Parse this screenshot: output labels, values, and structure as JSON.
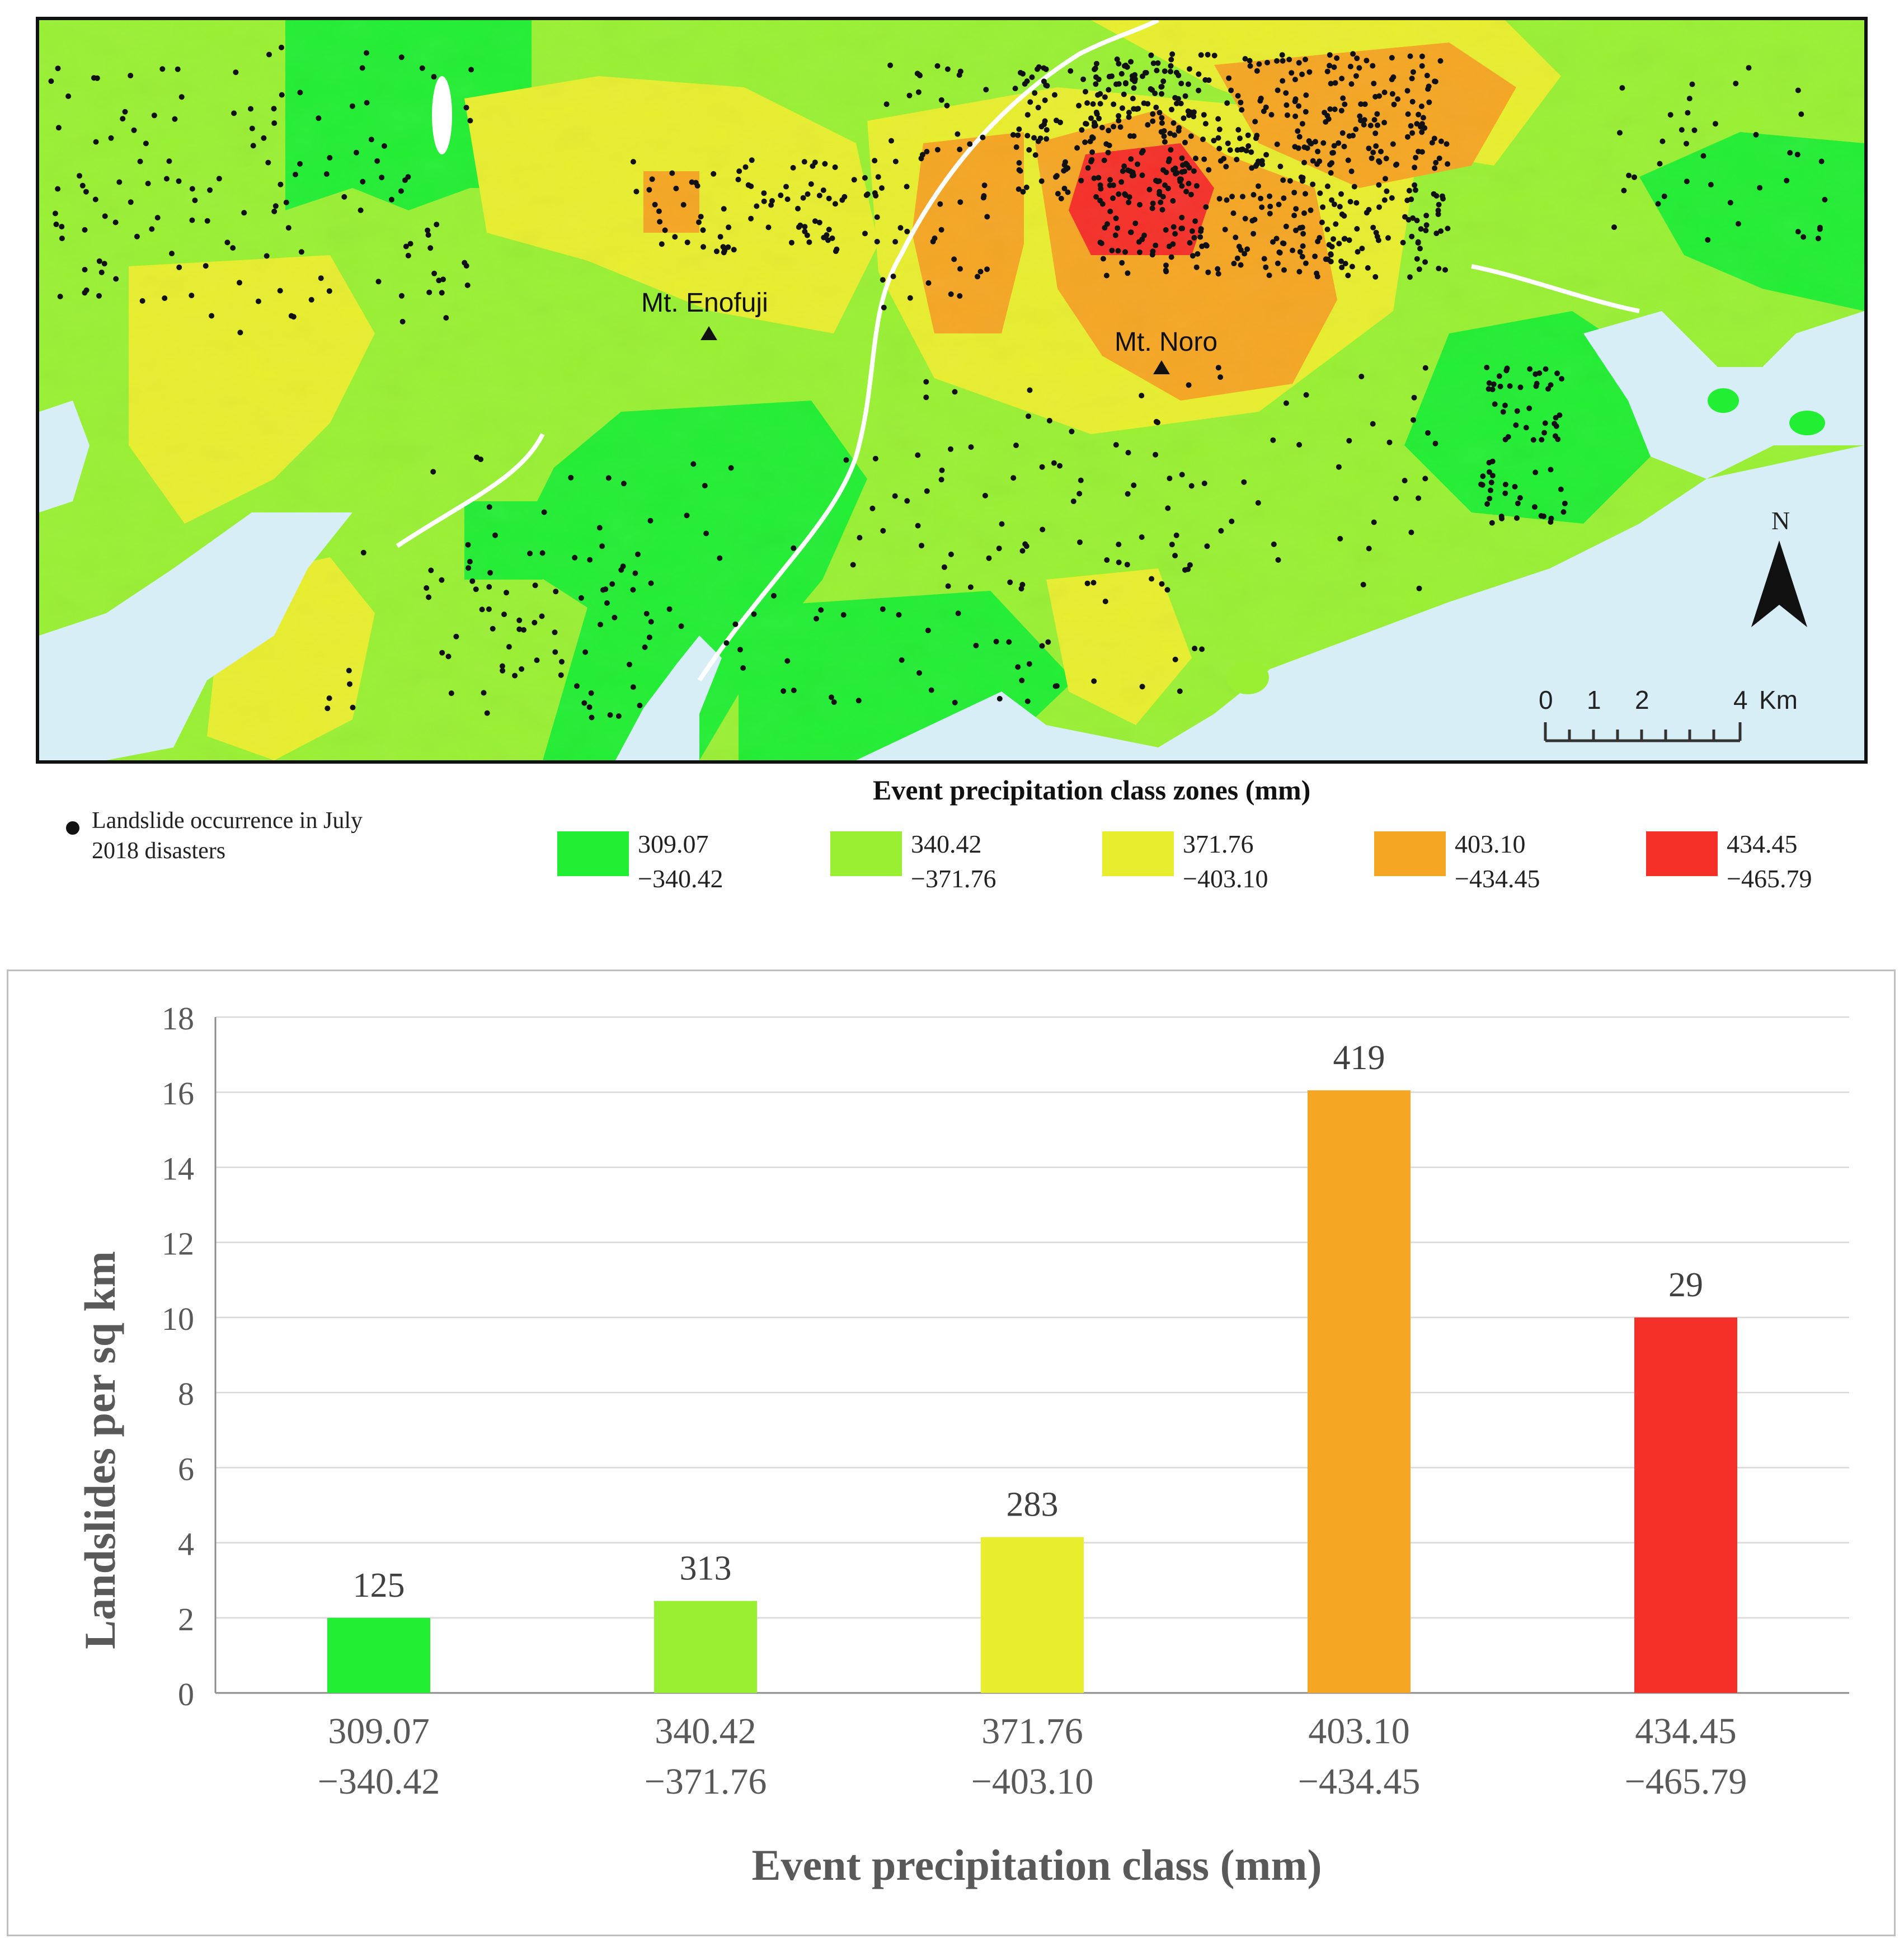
{
  "map": {
    "peaks": [
      {
        "name": "Mt. Enofuji"
      },
      {
        "name": "Mt. Noro"
      }
    ],
    "north_label": "N",
    "scale": {
      "ticks": [
        "0",
        "1",
        "2",
        "4"
      ],
      "unit": "Km"
    },
    "legend": {
      "title": "Event  precipitation class zones (mm)",
      "point_label": "Landslide occurrence in July 2018 disasters",
      "classes": [
        {
          "range": "309.07\n−340.42",
          "color": "#22ee33"
        },
        {
          "range": "340.42\n−371.76",
          "color": "#99f033"
        },
        {
          "range": "371.76\n−403.10",
          "color": "#e8ee2e"
        },
        {
          "range": "403.10\n−434.45",
          "color": "#f5a623"
        },
        {
          "range": "434.45\n−465.79",
          "color": "#f53029"
        }
      ]
    },
    "colors": {
      "sea": "#d8eef7",
      "river": "#ffffff",
      "landslide": "#111111"
    }
  },
  "chart_data": {
    "type": "bar",
    "categories": [
      "309.07\n−340.42",
      "340.42\n−371.76",
      "371.76\n−403.10",
      "403.10\n−434.45",
      "434.45\n−465.79"
    ],
    "values": [
      2.0,
      2.45,
      4.15,
      16.05,
      10.0
    ],
    "data_labels": [
      "125",
      "313",
      "283",
      "419",
      "29"
    ],
    "colors": [
      "#22ee33",
      "#99f033",
      "#e8ee2e",
      "#f5a623",
      "#f53029"
    ],
    "xlabel": "Event precipitation class (mm)",
    "ylabel": "Landslides per sq km",
    "ylim": [
      0,
      18
    ],
    "yticks": [
      "0",
      "2",
      "4",
      "6",
      "8",
      "10",
      "12",
      "14",
      "16",
      "18"
    ],
    "grid": true
  }
}
